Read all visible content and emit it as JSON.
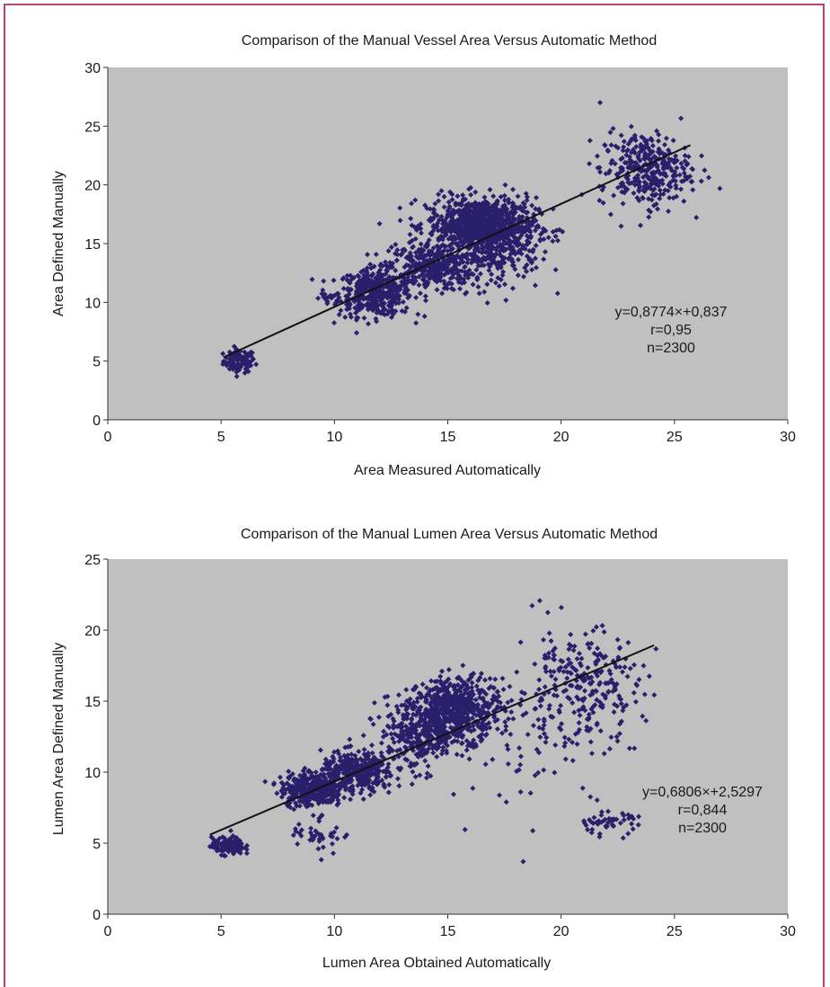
{
  "chart_data": [
    {
      "type": "scatter",
      "title": "Comparison of the Manual Vessel Area Versus Automatic Method",
      "xlabel": "Area Measured Automatically",
      "ylabel": "Area Defined Manually",
      "xlim": [
        0,
        30
      ],
      "ylim": [
        0,
        30
      ],
      "xticks": [
        0,
        5,
        10,
        15,
        20,
        25,
        30
      ],
      "yticks": [
        0,
        5,
        10,
        15,
        20,
        25,
        30
      ],
      "grid": false,
      "point_color": "#2a1f6b",
      "plot_background": "#c0c0c0",
      "n_points_shown": 2300,
      "clusters": [
        {
          "cx": 5.8,
          "cy": 5.0,
          "sx": 0.35,
          "sy": 0.5,
          "n": 90
        },
        {
          "cx": 9.8,
          "cy": 10.3,
          "sx": 0.3,
          "sy": 0.2,
          "n": 12
        },
        {
          "cx": 11.8,
          "cy": 10.8,
          "sx": 0.8,
          "sy": 1.0,
          "n": 420
        },
        {
          "cx": 14.2,
          "cy": 13.0,
          "sx": 0.9,
          "sy": 1.0,
          "n": 320
        },
        {
          "cx": 16.5,
          "cy": 16.5,
          "sx": 1.2,
          "sy": 1.2,
          "n": 900
        },
        {
          "cx": 17.3,
          "cy": 14.0,
          "sx": 0.9,
          "sy": 1.5,
          "n": 160
        },
        {
          "cx": 23.7,
          "cy": 21.3,
          "sx": 1.0,
          "sy": 1.6,
          "n": 330
        }
      ],
      "trendline": {
        "slope": 0.8774,
        "intercept": 0.837,
        "x_range": [
          5.1,
          25.7
        ]
      },
      "annotations": [
        "y=0,8774×+0,837",
        "r=0,95",
        "n=2300"
      ]
    },
    {
      "type": "scatter",
      "title": "Comparison of the Manual Lumen Area Versus Automatic Method",
      "xlabel": "Lumen Area Obtained Automatically",
      "ylabel": "Lumen Area Defined Manually",
      "xlim": [
        0,
        30
      ],
      "ylim": [
        0,
        25
      ],
      "xticks": [
        0,
        5,
        10,
        15,
        20,
        25,
        30
      ],
      "yticks": [
        0,
        5,
        10,
        15,
        20,
        25
      ],
      "grid": false,
      "point_color": "#2a1f6b",
      "plot_background": "#c0c0c0",
      "n_points_shown": 2300,
      "clusters": [
        {
          "cx": 5.3,
          "cy": 4.8,
          "sx": 0.35,
          "sy": 0.3,
          "n": 150
        },
        {
          "cx": 9.0,
          "cy": 8.8,
          "sx": 0.7,
          "sy": 0.6,
          "n": 320
        },
        {
          "cx": 11.0,
          "cy": 10.0,
          "sx": 0.8,
          "sy": 0.7,
          "n": 330
        },
        {
          "cx": 13.8,
          "cy": 12.8,
          "sx": 0.9,
          "sy": 1.3,
          "n": 360
        },
        {
          "cx": 15.5,
          "cy": 14.5,
          "sx": 0.9,
          "sy": 1.1,
          "n": 480
        },
        {
          "cx": 9.3,
          "cy": 5.6,
          "sx": 0.6,
          "sy": 0.6,
          "n": 40
        },
        {
          "cx": 20.8,
          "cy": 16.0,
          "sx": 1.4,
          "sy": 2.0,
          "n": 260
        },
        {
          "cx": 22.0,
          "cy": 6.4,
          "sx": 0.7,
          "sy": 0.4,
          "n": 50
        },
        {
          "cx": 19.0,
          "cy": 12.0,
          "sx": 2.0,
          "sy": 2.5,
          "n": 60
        }
      ],
      "trendline": {
        "slope": 0.6806,
        "intercept": 2.5297,
        "x_range": [
          4.5,
          24.1
        ]
      },
      "annotations": [
        "y=0,6806×+2,5297",
        "r=0,844",
        "n=2300"
      ]
    }
  ]
}
